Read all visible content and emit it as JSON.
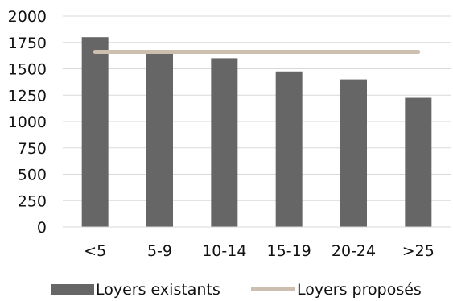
{
  "chart_data": {
    "type": "bar",
    "categories": [
      "<5",
      "5-9",
      "10-14",
      "15-19",
      "20-24",
      ">25"
    ],
    "y_ticks": [
      "0",
      "250",
      "500",
      "750",
      "1000",
      "1250",
      "1500",
      "1750",
      "2000"
    ],
    "ylim": [
      0,
      2000
    ],
    "grid": true,
    "legend_position": "bottom",
    "series": [
      {
        "name": "Loyers existants",
        "type": "bar",
        "color": "#666666",
        "values": [
          1800,
          1665,
          1600,
          1475,
          1400,
          1225
        ]
      },
      {
        "name": "Loyers proposés",
        "type": "line",
        "color": "#cdbfaf",
        "values": [
          1660,
          1660,
          1660,
          1660,
          1660,
          1660
        ]
      }
    ]
  }
}
